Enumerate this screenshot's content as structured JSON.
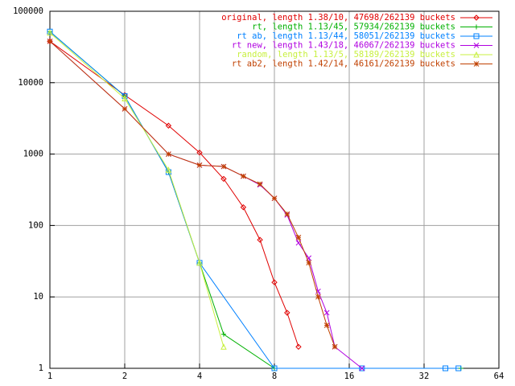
{
  "chart_data": {
    "type": "line",
    "xlog": 2,
    "ylog": 10,
    "grid": true,
    "legend": "top-right",
    "xlim": [
      1,
      64
    ],
    "xticks": [
      1,
      2,
      4,
      8,
      16,
      32,
      64
    ],
    "ylim": [
      1,
      100000
    ],
    "yticks": [
      1,
      10,
      100,
      1000,
      10000,
      100000
    ],
    "series": [
      {
        "name": "original, length 1.38/10, 47698/262139 buckets",
        "color": "#e00000",
        "marker": "diamond",
        "x": [
          1,
          2,
          3,
          4,
          5,
          6,
          7,
          8,
          9,
          10
        ],
        "values": [
          38000,
          6700,
          2500,
          1050,
          450,
          180,
          63,
          16,
          6,
          2
        ]
      },
      {
        "name": "rt, length 1.13/45, 57934/262139 buckets",
        "color": "#00b000",
        "marker": "plus",
        "x": [
          1,
          2,
          3,
          4,
          5,
          8,
          45
        ],
        "values": [
          52000,
          6500,
          560,
          30,
          3,
          1,
          1
        ]
      },
      {
        "name": "rt ab, length 1.13/44, 58051/262139 buckets",
        "color": "#0080ff",
        "marker": "square",
        "x": [
          1,
          2,
          3,
          4,
          8,
          18,
          39,
          44
        ],
        "values": [
          52000,
          6500,
          560,
          30,
          1,
          1,
          1,
          1
        ]
      },
      {
        "name": "rt new, length 1.43/18, 46067/262139 buckets",
        "color": "#b000e0",
        "marker": "cross",
        "x": [
          1,
          2,
          3,
          4,
          5,
          6,
          7,
          8,
          9,
          10,
          11,
          12,
          13,
          14,
          18
        ],
        "values": [
          38000,
          4300,
          1000,
          700,
          670,
          490,
          370,
          240,
          140,
          57,
          35,
          12,
          6,
          2,
          1
        ]
      },
      {
        "name": "random, length 1.13/5, 58189/262139 buckets",
        "color": "#c8f040",
        "marker": "triangle",
        "x": [
          1,
          2,
          3,
          4,
          5
        ],
        "values": [
          50000,
          6000,
          600,
          30,
          2
        ]
      },
      {
        "name": "rt ab2, length 1.42/14, 46161/262139 buckets",
        "color": "#c04000",
        "marker": "star",
        "x": [
          1,
          2,
          3,
          4,
          5,
          6,
          7,
          8,
          9,
          10,
          11,
          12,
          13,
          14
        ],
        "values": [
          38000,
          4300,
          1000,
          700,
          670,
          490,
          380,
          240,
          145,
          68,
          30,
          10,
          4,
          2
        ]
      }
    ]
  }
}
